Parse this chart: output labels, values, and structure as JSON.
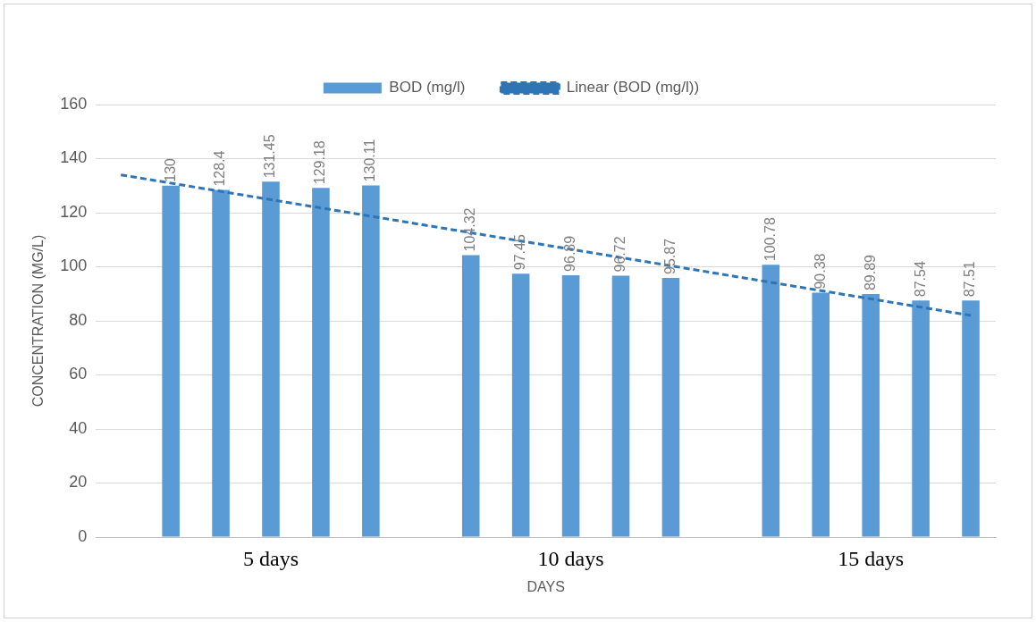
{
  "chart_data": {
    "type": "bar",
    "xlabel": "DAYS",
    "ylabel": "CONCENTRATION (MG/L)",
    "categories": [
      null,
      null,
      null,
      "5 days",
      null,
      null,
      null,
      null,
      null,
      "10 days",
      null,
      null,
      null,
      null,
      null,
      "15 days",
      null,
      null
    ],
    "series": [
      {
        "name": "BOD (mg/l)",
        "color": "#5b9bd5",
        "values": [
          null,
          130,
          128.4,
          131.45,
          129.18,
          130.11,
          null,
          104.32,
          97.45,
          96.89,
          96.72,
          95.87,
          null,
          100.78,
          90.38,
          89.89,
          87.54,
          87.51
        ],
        "value_labels": [
          null,
          "130",
          "128.4",
          "131.45",
          "129.18",
          "130.11",
          null,
          "104.32",
          "97.45",
          "96.89",
          "96.72",
          "95.87",
          null,
          "100.78",
          "90.38",
          "89.89",
          "87.54",
          "87.51"
        ]
      },
      {
        "name": "Linear (BOD (mg/l))",
        "type": "line",
        "color": "#2e75b6",
        "line_style": "dashed",
        "values": [
          134,
          null,
          null,
          null,
          null,
          null,
          null,
          null,
          null,
          null,
          null,
          null,
          null,
          null,
          null,
          null,
          null,
          82
        ]
      }
    ],
    "ylim": [
      0,
      160
    ],
    "yticks": [
      0,
      20,
      40,
      60,
      80,
      100,
      120,
      140,
      160
    ],
    "grid": "y",
    "legend": "top",
    "marker": "none"
  }
}
